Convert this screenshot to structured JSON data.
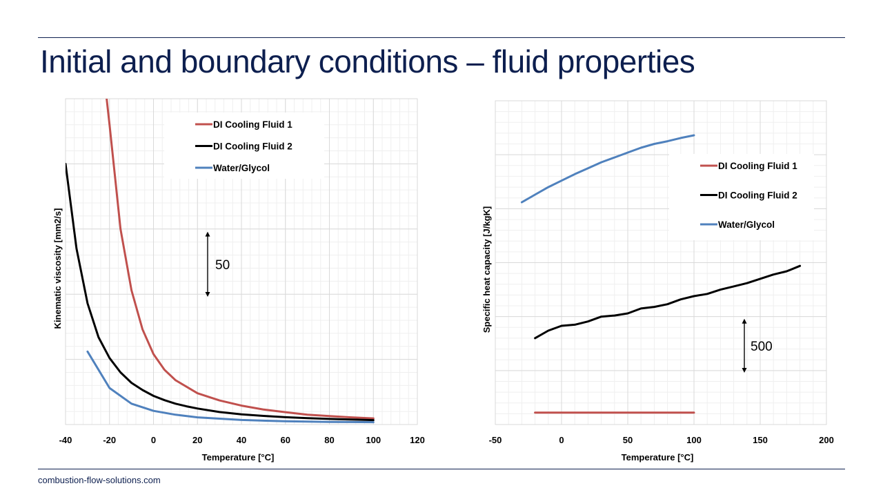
{
  "slide": {
    "title": "Initial and boundary conditions – fluid properties",
    "footer": "combustion-flow-solutions.com",
    "accent_color": "#0d1f4f"
  },
  "chart_data": [
    {
      "type": "line",
      "xlabel": "Temperature [°C]",
      "ylabel": "Kinematic viscosity [mm2/s]",
      "xlim": [
        -40,
        120
      ],
      "x_ticks": [
        "-40",
        "-20",
        "0",
        "20",
        "40",
        "60",
        "80",
        "100",
        "120"
      ],
      "y_ticks_shown": false,
      "grid": true,
      "legend_position": "top-center",
      "annotation": {
        "text": "50",
        "span": 50
      },
      "series": [
        {
          "name": "DI Cooling Fluid 1",
          "color": "#c0504d",
          "x": [
            -21.3,
            -20,
            -15,
            -10,
            -5,
            0,
            5,
            10,
            20,
            30,
            40,
            50,
            60,
            70,
            80,
            90,
            100
          ],
          "y": [
            250,
            230,
            150,
            103,
            73,
            54,
            42,
            34,
            24,
            18.5,
            14.5,
            11.5,
            9.5,
            7.5,
            6.5,
            5.5,
            4.7
          ]
        },
        {
          "name": "DI Cooling Fluid 2",
          "color": "#000000",
          "x": [
            -40,
            -35,
            -30,
            -25,
            -20,
            -15,
            -10,
            -5,
            0,
            5,
            10,
            15,
            20,
            30,
            40,
            50,
            60,
            70,
            80,
            90,
            100
          ],
          "y": [
            200,
            135,
            93,
            67,
            51,
            40,
            32,
            26.5,
            22,
            18.7,
            16,
            14,
            12.3,
            9.6,
            7.8,
            6.6,
            5.6,
            4.9,
            4.3,
            3.8,
            3.4
          ]
        },
        {
          "name": "Water/Glycol",
          "color": "#4f81bd",
          "x": [
            -30,
            -20,
            -10,
            0,
            10,
            20,
            40,
            60,
            80,
            100
          ],
          "y": [
            56,
            28,
            16,
            10.5,
            7.5,
            5.5,
            3.5,
            2.5,
            2,
            1.8
          ]
        }
      ]
    },
    {
      "type": "line",
      "xlabel": "Temperature [°C]",
      "ylabel": "Specific heat capacity [J/kgK]",
      "xlim": [
        -50,
        200
      ],
      "x_ticks": [
        "-50",
        "0",
        "50",
        "100",
        "150",
        "200"
      ],
      "y_ticks_shown": false,
      "grid": true,
      "legend_position": "top-right",
      "annotation": {
        "text": "500",
        "span": 500
      },
      "series": [
        {
          "name": "DI Cooling Fluid 1",
          "color": "#c0504d",
          "x": [
            -20,
            100
          ],
          "y": [
            1010,
            1010
          ]
        },
        {
          "name": "DI Cooling Fluid 2",
          "color": "#000000",
          "x": [
            -20,
            -10,
            0,
            10,
            20,
            30,
            40,
            50,
            60,
            70,
            80,
            90,
            100,
            110,
            120,
            130,
            140,
            150,
            160,
            170,
            180
          ],
          "y": [
            1700,
            1770,
            1815,
            1825,
            1855,
            1900,
            1910,
            1930,
            1975,
            1990,
            2015,
            2060,
            2090,
            2110,
            2150,
            2180,
            2210,
            2250,
            2290,
            2320,
            2370
          ]
        },
        {
          "name": "Water/Glycol",
          "color": "#4f81bd",
          "x": [
            -30,
            -20,
            -10,
            0,
            10,
            20,
            30,
            40,
            50,
            60,
            70,
            80,
            90,
            100
          ],
          "y": [
            2960,
            3030,
            3100,
            3160,
            3220,
            3275,
            3330,
            3375,
            3420,
            3465,
            3500,
            3525,
            3555,
            3580
          ]
        }
      ]
    }
  ]
}
